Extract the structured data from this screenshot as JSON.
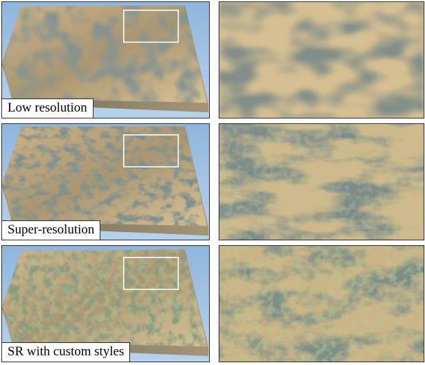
{
  "rows": [
    {
      "caption": "Low resolution",
      "overview_image": "low-resolution-terrain-render",
      "detail_image": "low-resolution-terrain-closeup"
    },
    {
      "caption": "Super-resolution",
      "overview_image": "super-resolution-terrain-render",
      "detail_image": "super-resolution-terrain-closeup"
    },
    {
      "caption": "SR with custom styles",
      "overview_image": "custom-style-terrain-render",
      "detail_image": "custom-style-terrain-closeup"
    }
  ],
  "colors": {
    "sky": "#9dc0e3",
    "terrain_light": "#d8bf8f",
    "terrain_mid": "#9c8a5e",
    "terrain_dark": "#3e4a46",
    "terrain_green": "#7f8a4a",
    "highlight_box": "#ffffff"
  }
}
